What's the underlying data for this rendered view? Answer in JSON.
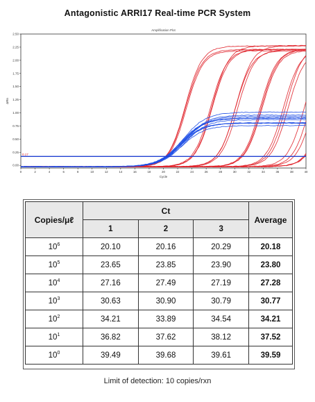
{
  "page": {
    "title": "Antagonistic ARRI17 Real-time PCR System",
    "footnote": "Limit of detection: 10 copies/rxn"
  },
  "chart_data": [
    {
      "type": "line",
      "title": "Amplification Plot",
      "xlabel": "Cycle",
      "ylabel": "ΔRn",
      "xlim": [
        0,
        40
      ],
      "ylim": [
        -0.05,
        2.5
      ],
      "x_ticks": [
        0,
        2,
        4,
        6,
        8,
        10,
        12,
        14,
        16,
        18,
        20,
        22,
        24,
        26,
        28,
        30,
        32,
        34,
        36,
        38,
        40
      ],
      "y_ticks": [
        "2.50",
        "2.25",
        "2.00",
        "1.75",
        "1.50",
        "1.25",
        "1.00",
        "0.75",
        "0.50",
        "0.25",
        "0.00"
      ],
      "threshold": {
        "value": 0.17,
        "label": "0.17",
        "color": "#1f3fd1"
      },
      "colors": {
        "sample": "#e0242b",
        "control": "#2050e6"
      },
      "series_groups": [
        {
          "color_key": "sample",
          "ct_values": [
            20.1,
            20.16,
            20.29,
            23.65,
            23.85,
            23.9,
            27.16,
            27.49,
            27.19,
            30.63,
            30.9,
            30.79,
            34.21,
            33.89,
            34.54,
            36.82,
            37.62,
            38.12,
            39.49,
            39.68,
            39.61
          ],
          "plateau": 2.3
        },
        {
          "color_key": "control",
          "ct_values": [
            20.0,
            20.1,
            20.2,
            20.3,
            20.4,
            20.2,
            20.5,
            20.1,
            20.3,
            20.6,
            20.0,
            20.4
          ],
          "plateau": 0.95
        }
      ],
      "grid": false,
      "legend": "none"
    },
    {
      "type": "table",
      "headers": {
        "copies": "Copies/μℓ",
        "ct": "Ct",
        "rep1": "1",
        "rep2": "2",
        "rep3": "3",
        "average": "Average"
      },
      "rows": [
        {
          "base": "10",
          "exp": "6",
          "ct": [
            "20.10",
            "20.16",
            "20.29"
          ],
          "avg": "20.18"
        },
        {
          "base": "10",
          "exp": "5",
          "ct": [
            "23.65",
            "23.85",
            "23.90"
          ],
          "avg": "23.80"
        },
        {
          "base": "10",
          "exp": "4",
          "ct": [
            "27.16",
            "27.49",
            "27.19"
          ],
          "avg": "27.28"
        },
        {
          "base": "10",
          "exp": "3",
          "ct": [
            "30.63",
            "30.90",
            "30.79"
          ],
          "avg": "30.77"
        },
        {
          "base": "10",
          "exp": "2",
          "ct": [
            "34.21",
            "33.89",
            "34.54"
          ],
          "avg": "34.21"
        },
        {
          "base": "10",
          "exp": "1",
          "ct": [
            "36.82",
            "37.62",
            "38.12"
          ],
          "avg": "37.52"
        },
        {
          "base": "10",
          "exp": "0",
          "ct": [
            "39.49",
            "39.68",
            "39.61"
          ],
          "avg": "39.59"
        }
      ]
    }
  ]
}
